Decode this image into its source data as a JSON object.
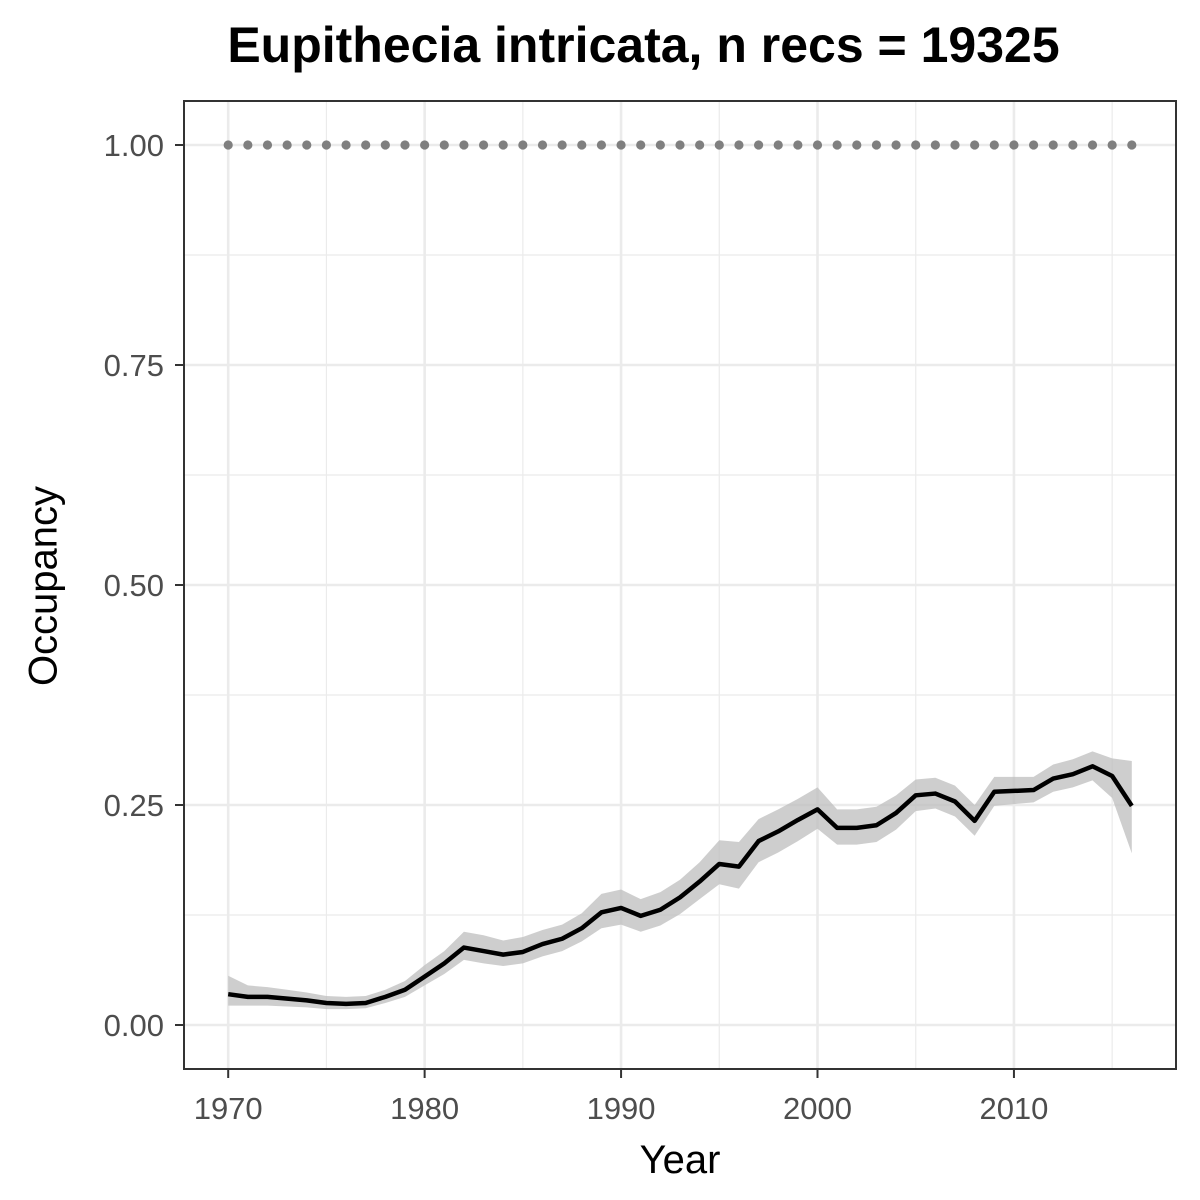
{
  "chart_data": {
    "type": "line",
    "title": "Eupithecia intricata, n recs = 19325",
    "xlabel": "Year",
    "ylabel": "Occupancy",
    "xlim": [
      1967.75,
      2018.25
    ],
    "ylim": [
      -0.05,
      1.05
    ],
    "x_ticks": [
      1970,
      1980,
      1990,
      2000,
      2010
    ],
    "x_tick_labels": [
      "1970",
      "1980",
      "1990",
      "2000",
      "2010"
    ],
    "y_ticks": [
      0.0,
      0.25,
      0.5,
      0.75,
      1.0
    ],
    "y_tick_labels": [
      "0.00",
      "0.25",
      "0.50",
      "0.75",
      "1.00"
    ],
    "grid": true,
    "legend": "none",
    "colors": {
      "line": "#000000",
      "ribbon": "#bdbdbd",
      "reference_points": "#7f7f7f",
      "grid": "#ebebeb",
      "tick_text": "#4d4d4d"
    },
    "series": [
      {
        "type": "line_with_ribbon",
        "x": [
          1970,
          1971,
          1972,
          1973,
          1974,
          1975,
          1976,
          1977,
          1978,
          1979,
          1980,
          1981,
          1982,
          1983,
          1984,
          1985,
          1986,
          1987,
          1988,
          1989,
          1990,
          1991,
          1992,
          1993,
          1994,
          1995,
          1996,
          1997,
          1998,
          1999,
          2000,
          2001,
          2002,
          2003,
          2004,
          2005,
          2006,
          2007,
          2008,
          2009,
          2010,
          2011,
          2012,
          2013,
          2014,
          2015,
          2016
        ],
        "y": [
          0.035,
          0.032,
          0.032,
          0.03,
          0.028,
          0.025,
          0.024,
          0.025,
          0.032,
          0.04,
          0.055,
          0.07,
          0.088,
          0.084,
          0.08,
          0.083,
          0.092,
          0.098,
          0.11,
          0.128,
          0.133,
          0.124,
          0.131,
          0.145,
          0.163,
          0.183,
          0.18,
          0.209,
          0.22,
          0.233,
          0.245,
          0.224,
          0.224,
          0.227,
          0.241,
          0.261,
          0.263,
          0.254,
          0.232,
          0.265,
          0.266,
          0.267,
          0.28,
          0.285,
          0.294,
          0.283,
          0.249
        ],
        "lower": [
          0.022,
          0.022,
          0.022,
          0.021,
          0.02,
          0.018,
          0.018,
          0.019,
          0.025,
          0.032,
          0.045,
          0.058,
          0.074,
          0.07,
          0.067,
          0.07,
          0.078,
          0.084,
          0.095,
          0.11,
          0.114,
          0.106,
          0.113,
          0.126,
          0.143,
          0.16,
          0.155,
          0.185,
          0.196,
          0.209,
          0.223,
          0.205,
          0.205,
          0.208,
          0.222,
          0.243,
          0.246,
          0.237,
          0.215,
          0.249,
          0.251,
          0.253,
          0.265,
          0.27,
          0.278,
          0.258,
          0.195
        ],
        "upper": [
          0.056,
          0.045,
          0.043,
          0.04,
          0.037,
          0.033,
          0.032,
          0.033,
          0.04,
          0.05,
          0.068,
          0.084,
          0.106,
          0.102,
          0.096,
          0.1,
          0.108,
          0.114,
          0.127,
          0.149,
          0.154,
          0.143,
          0.151,
          0.165,
          0.185,
          0.21,
          0.208,
          0.234,
          0.245,
          0.257,
          0.27,
          0.245,
          0.245,
          0.248,
          0.261,
          0.279,
          0.281,
          0.272,
          0.25,
          0.282,
          0.282,
          0.282,
          0.296,
          0.302,
          0.311,
          0.303,
          0.3
        ]
      },
      {
        "type": "points",
        "x": [
          1970,
          1971,
          1972,
          1973,
          1974,
          1975,
          1976,
          1977,
          1978,
          1979,
          1980,
          1981,
          1982,
          1983,
          1984,
          1985,
          1986,
          1987,
          1988,
          1989,
          1990,
          1991,
          1992,
          1993,
          1994,
          1995,
          1996,
          1997,
          1998,
          1999,
          2000,
          2001,
          2002,
          2003,
          2004,
          2005,
          2006,
          2007,
          2008,
          2009,
          2010,
          2011,
          2012,
          2013,
          2014,
          2015,
          2016
        ],
        "y": [
          1,
          1,
          1,
          1,
          1,
          1,
          1,
          1,
          1,
          1,
          1,
          1,
          1,
          1,
          1,
          1,
          1,
          1,
          1,
          1,
          1,
          1,
          1,
          1,
          1,
          1,
          1,
          1,
          1,
          1,
          1,
          1,
          1,
          1,
          1,
          1,
          1,
          1,
          1,
          1,
          1,
          1,
          1,
          1,
          1,
          1,
          1
        ]
      }
    ]
  }
}
